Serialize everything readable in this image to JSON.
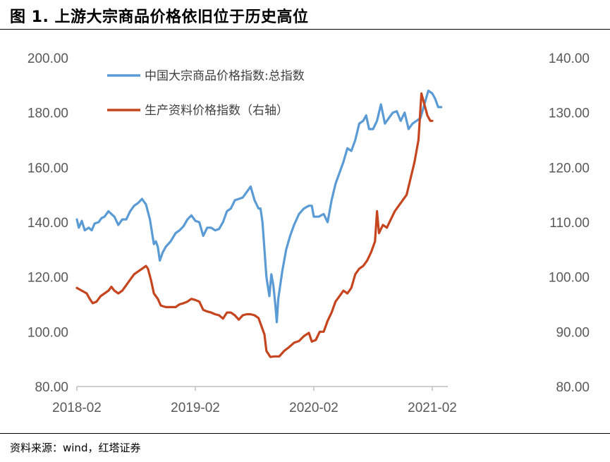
{
  "title": "图 1. 上游大宗商品价格依旧位于历史高位",
  "source": "资料来源：wind，红塔证券",
  "chart_data": {
    "type": "line",
    "left_axis": {
      "ylim": [
        80,
        200
      ],
      "ticks": [
        "80.00",
        "100.00",
        "120.00",
        "140.00",
        "160.00",
        "180.00",
        "200.00"
      ]
    },
    "right_axis": {
      "ylim": [
        80,
        140
      ],
      "ticks": [
        "80.00",
        "90.00",
        "100.00",
        "110.00",
        "120.00",
        "130.00",
        "140.00"
      ]
    },
    "x_ticks": [
      "2018-02",
      "2019-02",
      "2020-02",
      "2021-02"
    ],
    "legend_position": "top-left",
    "grid": false,
    "series": [
      {
        "name": "中国大宗商品价格指数:总指数",
        "axis": "left",
        "color": "#5B9BD5",
        "points": [
          [
            0,
            141
          ],
          [
            0.2,
            138
          ],
          [
            0.5,
            140.5
          ],
          [
            0.8,
            137
          ],
          [
            1.2,
            138
          ],
          [
            1.5,
            137
          ],
          [
            1.8,
            139.5
          ],
          [
            2.2,
            140
          ],
          [
            2.5,
            141.5
          ],
          [
            2.8,
            142
          ],
          [
            3.2,
            144
          ],
          [
            3.5,
            143
          ],
          [
            3.8,
            142
          ],
          [
            4.2,
            139
          ],
          [
            4.6,
            141
          ],
          [
            5.0,
            141
          ],
          [
            5.4,
            144
          ],
          [
            5.8,
            146
          ],
          [
            6.2,
            147
          ],
          [
            6.6,
            148.5
          ],
          [
            7.0,
            146.5
          ],
          [
            7.4,
            141
          ],
          [
            7.8,
            132
          ],
          [
            8.0,
            133
          ],
          [
            8.2,
            131
          ],
          [
            8.4,
            126
          ],
          [
            8.7,
            129
          ],
          [
            9.0,
            131
          ],
          [
            9.5,
            133
          ],
          [
            10.0,
            136
          ],
          [
            10.4,
            137
          ],
          [
            10.8,
            138.5
          ],
          [
            11.2,
            141
          ],
          [
            11.6,
            142.5
          ],
          [
            12.0,
            140.5
          ],
          [
            12.4,
            140
          ],
          [
            12.8,
            135
          ],
          [
            13.2,
            138
          ],
          [
            13.6,
            138
          ],
          [
            14.0,
            137
          ],
          [
            14.4,
            137.5
          ],
          [
            14.8,
            140
          ],
          [
            15.2,
            144
          ],
          [
            15.6,
            145
          ],
          [
            16.0,
            148
          ],
          [
            16.4,
            148.5
          ],
          [
            16.8,
            149
          ],
          [
            17.2,
            151
          ],
          [
            17.6,
            153
          ],
          [
            18.0,
            148
          ],
          [
            18.4,
            145
          ],
          [
            18.6,
            145
          ],
          [
            18.8,
            140
          ],
          [
            19.0,
            130
          ],
          [
            19.2,
            120
          ],
          [
            19.5,
            113
          ],
          [
            19.7,
            121
          ],
          [
            19.9,
            117
          ],
          [
            20.1,
            110
          ],
          [
            20.25,
            103.5
          ],
          [
            20.4,
            112
          ],
          [
            20.8,
            122
          ],
          [
            21.2,
            130
          ],
          [
            21.6,
            135
          ],
          [
            22.0,
            139
          ],
          [
            22.5,
            143
          ],
          [
            23.0,
            145
          ],
          [
            23.5,
            146
          ],
          [
            23.8,
            146
          ],
          [
            24.0,
            142
          ],
          [
            24.5,
            142
          ],
          [
            25.0,
            143
          ],
          [
            25.4,
            140
          ],
          [
            25.8,
            148
          ],
          [
            26.2,
            154
          ],
          [
            26.6,
            158
          ],
          [
            27.0,
            162
          ],
          [
            27.4,
            167
          ],
          [
            27.8,
            166
          ],
          [
            28.2,
            170
          ],
          [
            28.6,
            176
          ],
          [
            29.0,
            177
          ],
          [
            29.3,
            179
          ],
          [
            29.6,
            174
          ],
          [
            30.0,
            174
          ],
          [
            30.4,
            177
          ],
          [
            30.8,
            183
          ],
          [
            31.2,
            176
          ],
          [
            31.6,
            178
          ],
          [
            32.0,
            180
          ],
          [
            32.4,
            180.5
          ],
          [
            32.8,
            177
          ],
          [
            33.2,
            180
          ],
          [
            33.6,
            174
          ],
          [
            34.0,
            176
          ],
          [
            34.4,
            177
          ],
          [
            34.8,
            178
          ],
          [
            35.2,
            183
          ],
          [
            35.6,
            188
          ],
          [
            36.0,
            187
          ],
          [
            36.3,
            185
          ],
          [
            36.6,
            182
          ],
          [
            36.9,
            182
          ]
        ]
      },
      {
        "name": "生产资料价格指数（右轴）",
        "axis": "right",
        "color": "#C5451E",
        "points": [
          [
            0,
            98
          ],
          [
            0.5,
            97.5
          ],
          [
            1.0,
            97
          ],
          [
            1.3,
            96
          ],
          [
            1.6,
            95.2
          ],
          [
            2.0,
            95.5
          ],
          [
            2.4,
            96.5
          ],
          [
            2.8,
            97
          ],
          [
            3.2,
            97.5
          ],
          [
            3.5,
            98.2
          ],
          [
            3.8,
            97.5
          ],
          [
            4.2,
            97
          ],
          [
            4.6,
            97.5
          ],
          [
            5.0,
            98.5
          ],
          [
            5.4,
            99.5
          ],
          [
            5.8,
            100.5
          ],
          [
            6.2,
            101
          ],
          [
            6.6,
            101.5
          ],
          [
            7.0,
            102
          ],
          [
            7.2,
            101.5
          ],
          [
            7.5,
            99.5
          ],
          [
            7.8,
            97
          ],
          [
            8.2,
            96
          ],
          [
            8.5,
            94.8
          ],
          [
            9.0,
            94.5
          ],
          [
            9.5,
            94.5
          ],
          [
            10.0,
            94.5
          ],
          [
            10.4,
            95
          ],
          [
            10.8,
            95.2
          ],
          [
            11.2,
            95.5
          ],
          [
            11.6,
            96
          ],
          [
            12.0,
            95.8
          ],
          [
            12.4,
            95.5
          ],
          [
            12.8,
            94
          ],
          [
            13.2,
            93.7
          ],
          [
            13.6,
            93.5
          ],
          [
            14.0,
            93.2
          ],
          [
            14.4,
            93
          ],
          [
            14.8,
            92.4
          ],
          [
            15.2,
            93.5
          ],
          [
            15.6,
            93.5
          ],
          [
            16.0,
            93
          ],
          [
            16.4,
            92.2
          ],
          [
            16.8,
            93
          ],
          [
            17.2,
            93.2
          ],
          [
            17.6,
            93.2
          ],
          [
            18.0,
            93
          ],
          [
            18.4,
            92.5
          ],
          [
            18.7,
            91
          ],
          [
            19.0,
            89.5
          ],
          [
            19.2,
            86.5
          ],
          [
            19.6,
            85.4
          ],
          [
            20.0,
            85.5
          ],
          [
            20.5,
            85.5
          ],
          [
            21.0,
            86.5
          ],
          [
            21.5,
            87.2
          ],
          [
            22.0,
            88
          ],
          [
            22.5,
            88.3
          ],
          [
            23.0,
            89.2
          ],
          [
            23.5,
            89.8
          ],
          [
            23.8,
            88.2
          ],
          [
            24.2,
            88.5
          ],
          [
            24.6,
            90
          ],
          [
            25.0,
            90
          ],
          [
            25.4,
            92
          ],
          [
            25.8,
            93.5
          ],
          [
            26.2,
            95.5
          ],
          [
            26.6,
            96.5
          ],
          [
            27.0,
            97.5
          ],
          [
            27.4,
            97
          ],
          [
            27.8,
            98
          ],
          [
            28.2,
            100.5
          ],
          [
            28.6,
            101.5
          ],
          [
            29.0,
            102
          ],
          [
            29.4,
            103
          ],
          [
            29.8,
            104.5
          ],
          [
            30.2,
            106.5
          ],
          [
            30.4,
            112
          ],
          [
            30.6,
            108
          ],
          [
            31.0,
            109.5
          ],
          [
            31.4,
            109
          ],
          [
            31.8,
            110.5
          ],
          [
            32.2,
            112
          ],
          [
            32.6,
            113
          ],
          [
            33.0,
            114
          ],
          [
            33.4,
            115
          ],
          [
            33.8,
            118
          ],
          [
            34.2,
            121
          ],
          [
            34.6,
            125
          ],
          [
            34.9,
            133.5
          ],
          [
            35.2,
            131.5
          ],
          [
            35.5,
            129.5
          ],
          [
            35.8,
            128.5
          ],
          [
            36.0,
            128.5
          ]
        ]
      }
    ]
  }
}
